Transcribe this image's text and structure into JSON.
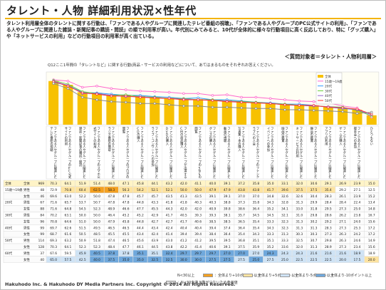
{
  "title": "タレント・人物 詳細利用状況×性年代",
  "description": "タレント利用層全体のタレントに関する行動は、「ファンである人やグループに関連したテレビ番組の視聴」、「ファンである人やグループのPC公式サイトの利用」、「ファンである人やグループに関連した雑誌・新聞記事の購読・閲読」の順で利用率が高い。年代別にみてみると、10代が全体的に様々な行動項目に高く反応しており、特に「グッズ購入」や「ネットサービスの利用」などの行動項目の利用率が高く出ている。",
  "target_label": "＜質問対象者＝タレント・人物利用層＞",
  "question": "Q12ここ1年間の「タレントなど」に関する行動(商品・サービスの利用など)について、あてはまるものをそれぞれお答えください。",
  "footnote": {
    "n30": "N<30以上",
    "legend": [
      {
        "label": "：全体より+10ポイント以上",
        "color": "#f4a020"
      },
      {
        "label": "：全体より+5ポイント以上",
        "color": "#fde3a0"
      },
      {
        "label": "：全体より-5ポイント以上",
        "color": "#cfe3f5"
      },
      {
        "label": "：全体より-10ポイント以上",
        "color": "#6fa8dc"
      },
      {
        "label": "：N<30未満 N数が少ないため参考値",
        "color": "#d9d9d9"
      }
    ]
  },
  "copyright": "Hakuhodo Inc. & Hakuhodo DY Media Partners Inc. Copyright © 2014 All Rights Reserved.",
  "chart_data": {
    "type": "bar",
    "legend_position": "top-right",
    "series_legend": [
      "全体",
      "15歳～19歳",
      "20代",
      "30代",
      "40代",
      "50代"
    ],
    "series_colors": [
      "#f7c100",
      "#ff66cc",
      "#3399ff",
      "#66cc33",
      "#9966cc",
      "#ff3333"
    ],
    "overall": [
      70,
      64,
      52,
      51,
      48,
      47,
      46,
      44,
      43,
      42,
      41,
      40,
      39,
      37,
      36,
      35,
      33,
      32,
      31,
      29,
      27,
      24,
      15
    ],
    "lines": [
      [
        72,
        70,
        60,
        62,
        58,
        56,
        54,
        53,
        52,
        50,
        50,
        47,
        48,
        44,
        44,
        42,
        40,
        38,
        37,
        35,
        30,
        27,
        12
      ],
      [
        68,
        63,
        52,
        51,
        49,
        47,
        47,
        45,
        44,
        42,
        43,
        40,
        40,
        38,
        36,
        35,
        33,
        33,
        31,
        28,
        26,
        24,
        16
      ],
      [
        71,
        65,
        53,
        50,
        47,
        48,
        45,
        44,
        42,
        42,
        40,
        40,
        38,
        37,
        36,
        34,
        33,
        31,
        30,
        29,
        28,
        23,
        14
      ],
      [
        70,
        63,
        50,
        50,
        47,
        45,
        45,
        43,
        42,
        41,
        40,
        39,
        38,
        36,
        35,
        34,
        32,
        31,
        30,
        29,
        27,
        24,
        16
      ],
      [
        69,
        62,
        51,
        49,
        46,
        46,
        44,
        43,
        42,
        40,
        40,
        39,
        37,
        36,
        35,
        34,
        32,
        31,
        31,
        28,
        27,
        25,
        17
      ],
      [
        66,
        58,
        44,
        40,
        37,
        36,
        34,
        34,
        32,
        30,
        30,
        28,
        28,
        27,
        26,
        26,
        24,
        24,
        23,
        22,
        21,
        18,
        20
      ]
    ],
    "ylim": [
      0,
      100
    ],
    "categories": [
      "ファンである人やグループに関連したテレビ番組の視聴",
      "ファンである人やグループのPC公式サイトの利用",
      "ファンである人やグループに関連した雑誌・新聞記事の購読・閲読",
      "ファンである人やグループのスマホ公式サイトの利用",
      "ファンである人やグループに関連したラジオ番組の聴取",
      "ファンである人やグループのブログの閲覧",
      "ファンである人やグループに関連したCDの購入",
      "ファンである人やグループに関連したライブ・コンサートへの参加",
      "ファンである人やグループに関連したDVDの購入",
      "ファンである人やグループが出演するCMの商品購入",
      "ファンである人やグループのSNSの閲覧",
      "ファンである人やグループに関連したグッズの購入",
      "ファンである人やグループに関連した動画の視聴",
      "ファンである人やグループに関連した写真集・本の購入",
      "ファンである人やグループのファンクラブへの入会",
      "ファンである人やグループに関連したイベントへの参加",
      "ファンである人やグループに関連した映画の鑑賞",
      "ファンである人やグループに関連したネットサービスの利用",
      "ファンである人やグループに関連した舞台の鑑賞",
      "ファンである人やグループに関連したアプリの利用",
      "ファンである人やグループに関連したゲームの購入",
      "ファンである人やグループに関連した握手会への参加",
      "ひとつもない"
    ],
    "table": {
      "groups": [
        {
          "label": "全体",
          "rows": [
            {
              "label": "全体",
              "n": "969"
            }
          ]
        },
        {
          "label": "15歳～19歳",
          "rows": [
            {
              "label": "男性",
              "n": "48"
            },
            {
              "label": "女性",
              "n": "46"
            }
          ]
        },
        {
          "label": "20代",
          "rows": [
            {
              "label": "男性",
              "n": "67"
            },
            {
              "label": "女性",
              "n": "88"
            }
          ]
        },
        {
          "label": "30代",
          "rows": [
            {
              "label": "男性",
              "n": "84"
            },
            {
              "label": "女性",
              "n": "96"
            }
          ]
        },
        {
          "label": "40代",
          "rows": [
            {
              "label": "男性",
              "n": "99"
            },
            {
              "label": "女性",
              "n": "99"
            }
          ]
        },
        {
          "label": "50代",
          "rows": [
            {
              "label": "男性",
              "n": "114"
            },
            {
              "label": "女性",
              "n": "128"
            }
          ]
        },
        {
          "label": "60代",
          "rows": [
            {
              "label": "男性",
              "n": "37"
            },
            {
              "label": "女性",
              "n": "40"
            }
          ]
        }
      ],
      "values": [
        [
          "70.3",
          "64.1",
          "51.9",
          "51.4",
          "48.0",
          "47.1",
          "45.8",
          "44.1",
          "43.2",
          "42.0",
          "41.1",
          "40.0",
          "39.1",
          "37.2",
          "35.8",
          "35.0",
          "33.1",
          "32.0",
          "30.6",
          "29.1",
          "26.9",
          "23.9",
          "15.0"
        ],
        [
          "72.9",
          "70.8",
          "60.4",
          "62.5",
          "58.3",
          "56.3",
          "54.2",
          "52.1",
          "52.1",
          "50.0",
          "50.0",
          "47.9",
          "47.9",
          "43.8",
          "43.8",
          "41.7",
          "39.6",
          "37.5",
          "37.5",
          "35.4",
          "29.2",
          "27.1",
          "12.5"
        ],
        [
          "69.6",
          "63.0",
          "52.2",
          "50.0",
          "47.8",
          "47.8",
          "45.7",
          "45.7",
          "43.5",
          "41.3",
          "43.5",
          "39.1",
          "39.1",
          "37.0",
          "37.0",
          "34.8",
          "32.6",
          "32.6",
          "30.4",
          "28.3",
          "26.1",
          "23.9",
          "15.2"
        ],
        [
          "71.6",
          "65.7",
          "53.7",
          "50.7",
          "47.8",
          "47.8",
          "44.8",
          "43.3",
          "41.8",
          "41.8",
          "40.3",
          "40.3",
          "38.8",
          "37.3",
          "35.8",
          "34.3",
          "32.8",
          "31.3",
          "29.9",
          "28.4",
          "28.4",
          "22.4",
          "13.4"
        ],
        [
          "71.6",
          "64.8",
          "54.5",
          "52.3",
          "48.9",
          "46.6",
          "47.7",
          "45.5",
          "44.3",
          "42.0",
          "42.0",
          "40.9",
          "39.8",
          "38.6",
          "36.4",
          "35.2",
          "34.1",
          "33.0",
          "31.8",
          "29.5",
          "27.3",
          "25.0",
          "14.8"
        ],
        [
          "70.2",
          "63.1",
          "50.0",
          "50.0",
          "46.4",
          "45.2",
          "45.2",
          "42.9",
          "41.7",
          "40.5",
          "39.3",
          "39.3",
          "38.1",
          "35.7",
          "34.5",
          "34.5",
          "32.1",
          "31.0",
          "29.8",
          "28.6",
          "26.2",
          "23.8",
          "16.7"
        ],
        [
          "70.8",
          "64.6",
          "51.0",
          "50.0",
          "47.9",
          "45.8",
          "44.8",
          "42.7",
          "42.7",
          "41.7",
          "40.6",
          "38.5",
          "38.5",
          "36.5",
          "35.4",
          "33.3",
          "32.3",
          "31.3",
          "30.2",
          "29.2",
          "27.1",
          "24.0",
          "15.6"
        ],
        [
          "69.7",
          "62.6",
          "51.5",
          "49.5",
          "46.5",
          "46.5",
          "44.4",
          "43.4",
          "42.4",
          "40.4",
          "40.4",
          "39.4",
          "37.4",
          "36.4",
          "35.4",
          "34.3",
          "32.3",
          "31.3",
          "31.3",
          "28.3",
          "27.3",
          "25.3",
          "17.2"
        ],
        [
          "68.7",
          "61.6",
          "50.5",
          "48.5",
          "45.5",
          "45.5",
          "43.4",
          "42.4",
          "41.4",
          "39.4",
          "39.4",
          "38.4",
          "36.4",
          "35.4",
          "34.3",
          "33.3",
          "31.3",
          "30.3",
          "30.3",
          "27.3",
          "26.3",
          "24.2",
          "17.2"
        ],
        [
          "69.3",
          "63.2",
          "50.9",
          "51.8",
          "47.4",
          "46.5",
          "45.6",
          "43.9",
          "43.0",
          "41.2",
          "41.2",
          "39.5",
          "39.5",
          "36.8",
          "35.1",
          "35.1",
          "33.3",
          "32.5",
          "30.7",
          "29.8",
          "26.3",
          "24.6",
          "14.9"
        ],
        [
          "70.3",
          "64.1",
          "52.3",
          "52.3",
          "48.4",
          "47.7",
          "46.1",
          "44.5",
          "43.8",
          "42.2",
          "41.4",
          "40.6",
          "39.1",
          "37.5",
          "35.9",
          "35.2",
          "33.6",
          "32.0",
          "31.3",
          "28.9",
          "27.3",
          "23.4",
          "15.6"
        ],
        [
          "67.6",
          "59.5",
          "45.9",
          "40.5",
          "37.8",
          "37.8",
          "35.1",
          "35.1",
          "32.4",
          "29.7",
          "29.7",
          "29.7",
          "27.0",
          "27.0",
          "27.0",
          "24.3",
          "24.3",
          "24.3",
          "21.6",
          "21.6",
          "21.6",
          "18.9",
          "18.9"
        ],
        [
          "65.0",
          "57.5",
          "42.5",
          "40.0",
          "37.5",
          "35.0",
          "35.0",
          "32.5",
          "32.5",
          "30.0",
          "30.0",
          "27.5",
          "27.5",
          "27.5",
          "25.0",
          "27.5",
          "25.0",
          "22.5",
          "22.5",
          "22.5",
          "20.0",
          "17.5",
          "20.0"
        ]
      ]
    }
  }
}
